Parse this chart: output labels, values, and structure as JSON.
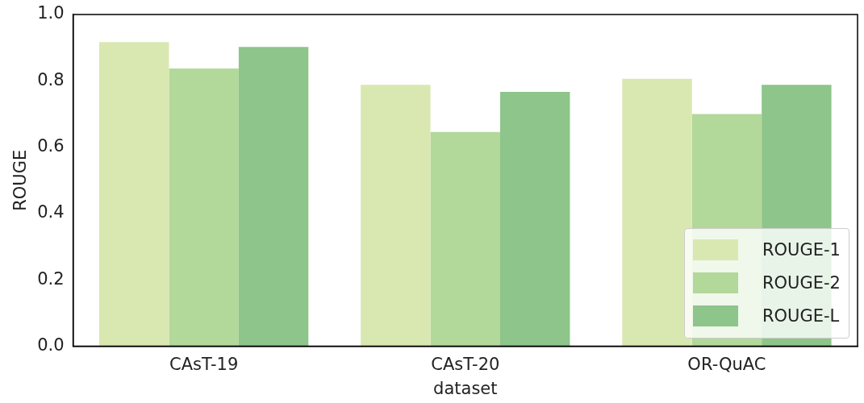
{
  "chart_data": {
    "type": "bar",
    "xlabel": "dataset",
    "ylabel": "ROUGE",
    "categories": [
      "CAsT-19",
      "CAsT-20",
      "OR-QuAC"
    ],
    "series": [
      {
        "name": "ROUGE-1",
        "color": "#d9e8b0",
        "values": [
          0.917,
          0.788,
          0.806
        ]
      },
      {
        "name": "ROUGE-2",
        "color": "#b2d89a",
        "values": [
          0.837,
          0.646,
          0.7
        ]
      },
      {
        "name": "ROUGE-L",
        "color": "#8dc58a",
        "values": [
          0.902,
          0.767,
          0.788
        ]
      }
    ],
    "ylim": [
      0,
      1
    ],
    "yticks": [
      {
        "value": 0,
        "label": "0.0"
      },
      {
        "value": 0.2,
        "label": "0.2"
      },
      {
        "value": 0.4,
        "label": "0.4"
      },
      {
        "value": 0.6,
        "label": "0.6"
      },
      {
        "value": 0.8,
        "label": "0.8"
      },
      {
        "value": 1,
        "label": "1.0"
      }
    ],
    "grid": false,
    "legend": "bottom right"
  }
}
